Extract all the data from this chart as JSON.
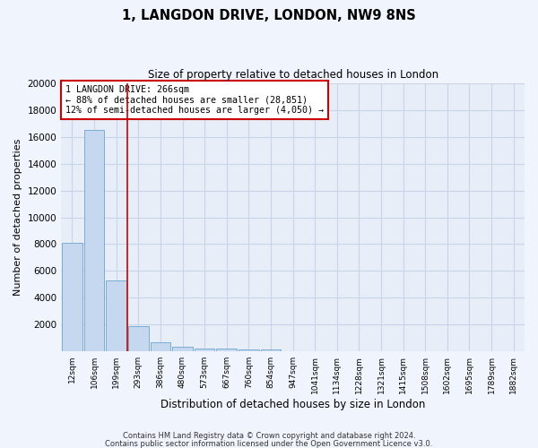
{
  "title": "1, LANGDON DRIVE, LONDON, NW9 8NS",
  "subtitle": "Size of property relative to detached houses in London",
  "xlabel": "Distribution of detached houses by size in London",
  "ylabel": "Number of detached properties",
  "bar_color": "#c5d8f0",
  "bar_edge_color": "#7aadd4",
  "background_color": "#e8eef8",
  "grid_color": "#c8d4e8",
  "fig_color": "#f0f4fc",
  "categories": [
    "12sqm",
    "106sqm",
    "199sqm",
    "293sqm",
    "386sqm",
    "480sqm",
    "573sqm",
    "667sqm",
    "760sqm",
    "854sqm",
    "947sqm",
    "1041sqm",
    "1134sqm",
    "1228sqm",
    "1321sqm",
    "1415sqm",
    "1508sqm",
    "1602sqm",
    "1695sqm",
    "1789sqm",
    "1882sqm"
  ],
  "values": [
    8100,
    16500,
    5300,
    1850,
    650,
    310,
    210,
    195,
    160,
    140,
    0,
    0,
    0,
    0,
    0,
    0,
    0,
    0,
    0,
    0,
    0
  ],
  "red_line_x": 2.5,
  "ylim": [
    0,
    20000
  ],
  "yticks": [
    0,
    2000,
    4000,
    6000,
    8000,
    10000,
    12000,
    14000,
    16000,
    18000,
    20000
  ],
  "annotation_title": "1 LANGDON DRIVE: 266sqm",
  "annotation_line1": "← 88% of detached houses are smaller (28,851)",
  "annotation_line2": "12% of semi-detached houses are larger (4,050) →",
  "footer1": "Contains HM Land Registry data © Crown copyright and database right 2024.",
  "footer2": "Contains public sector information licensed under the Open Government Licence v3.0."
}
